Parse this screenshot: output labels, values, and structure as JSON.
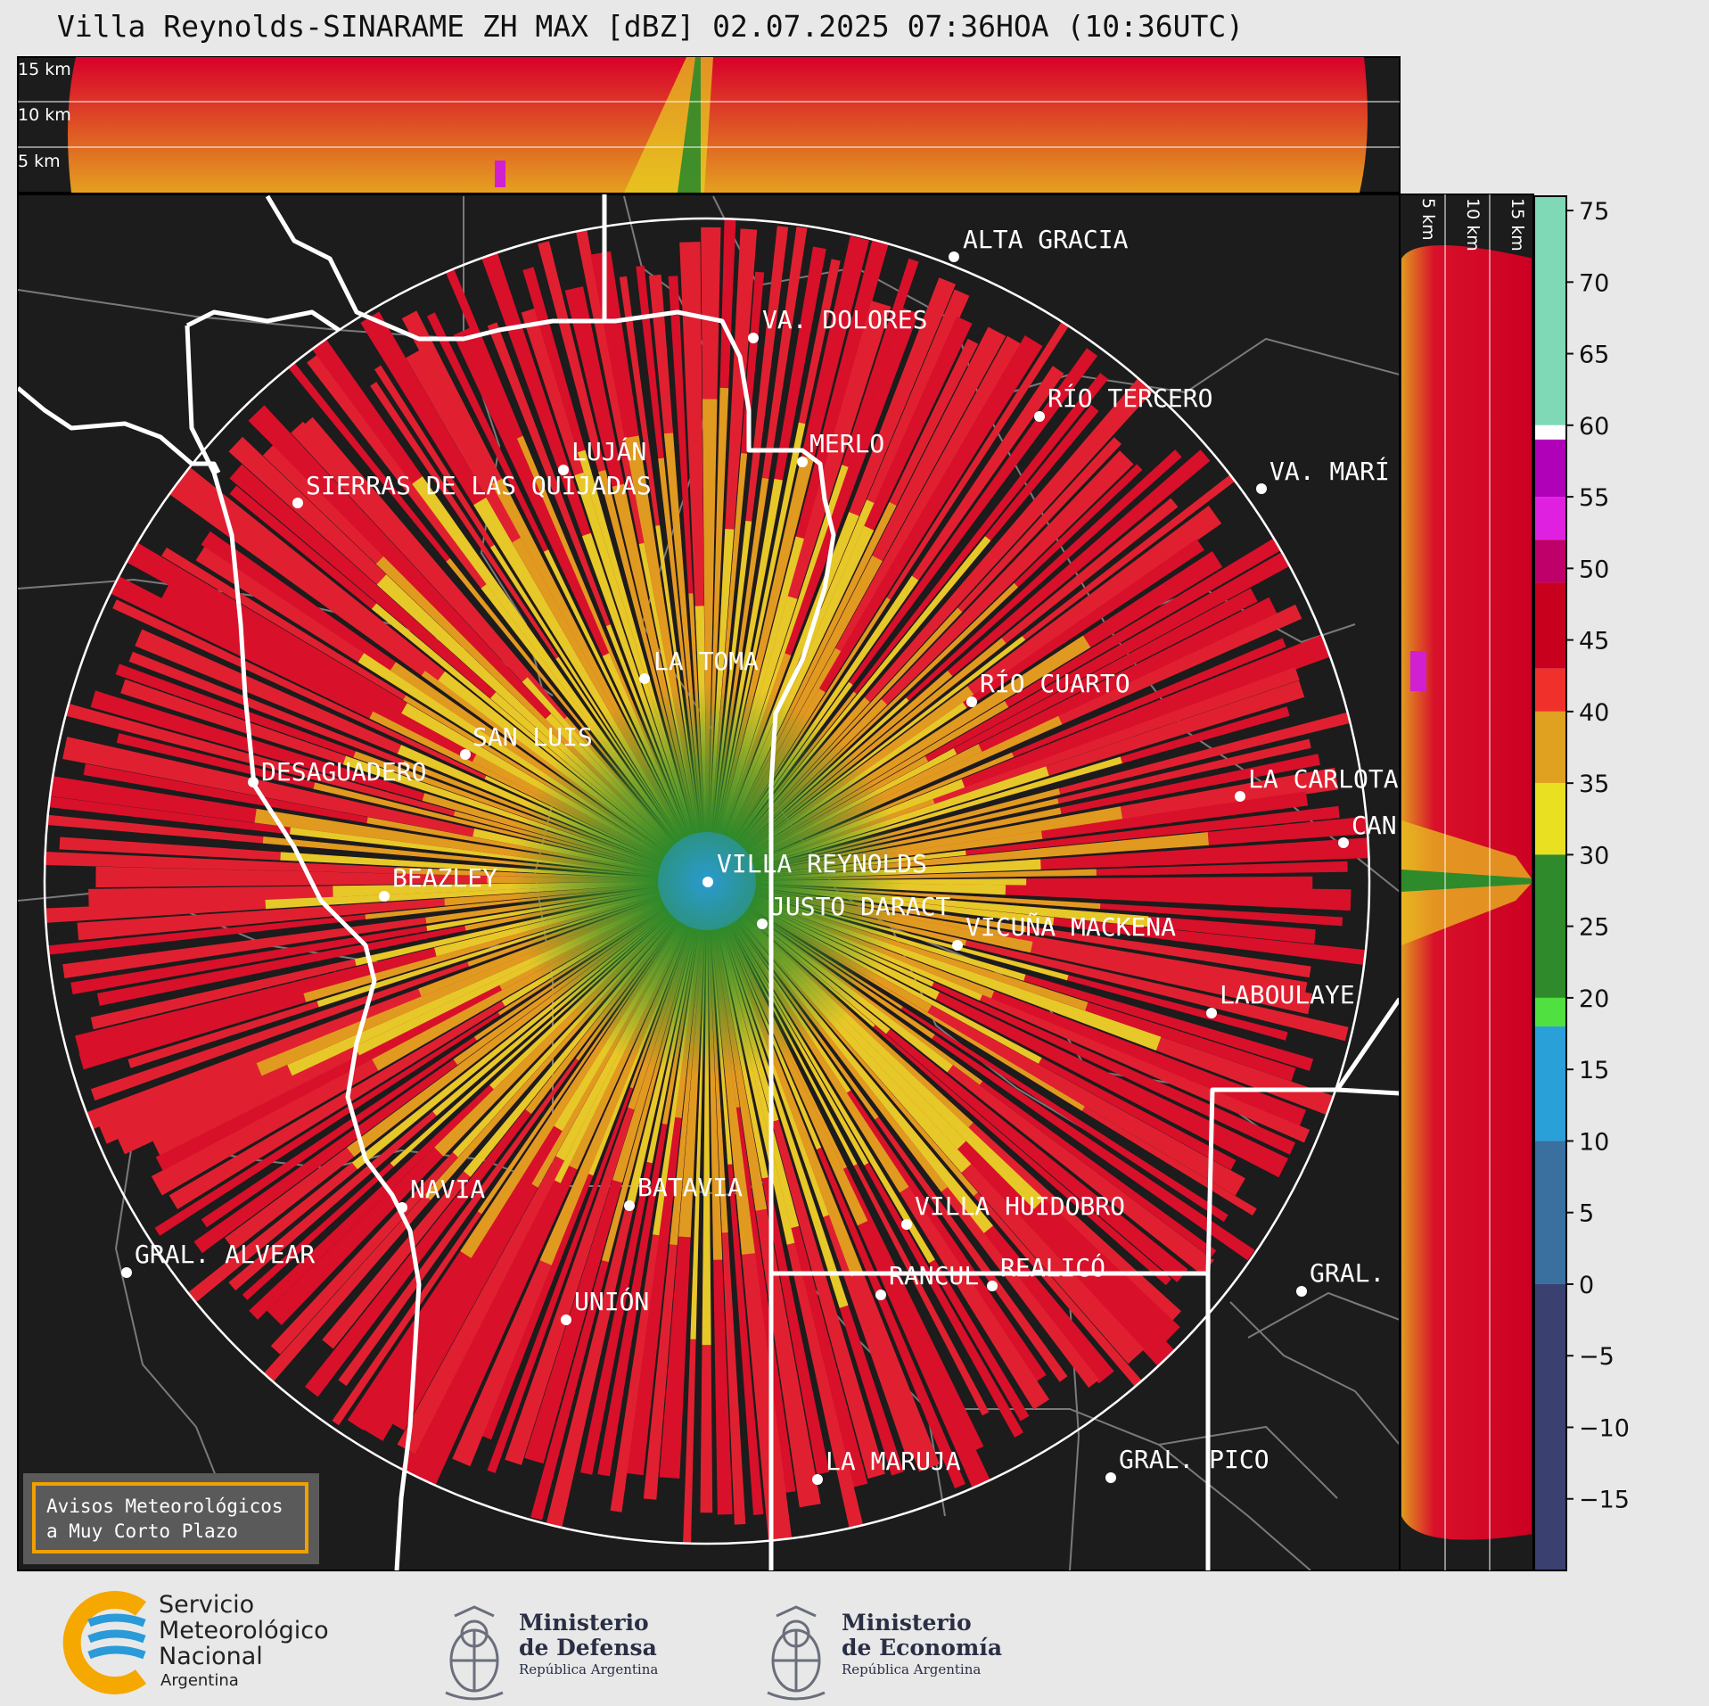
{
  "title": "Villa Reynolds-SINARAME ZH MAX [dBZ] 02.07.2025 07:36HOA (10:36UTC)",
  "radar_site": "VILLA REYNOLDS",
  "top_profile": {
    "height_labels": [
      "15 km",
      "10 km",
      "5 km"
    ]
  },
  "side_profile": {
    "height_labels": [
      "5 km",
      "10 km",
      "15 km"
    ]
  },
  "colorbar": {
    "ticks": [
      "75",
      "70",
      "65",
      "60",
      "55",
      "50",
      "45",
      "40",
      "35",
      "30",
      "25",
      "20",
      "15",
      "10",
      "5",
      "0",
      "−5",
      "−10",
      "−15"
    ],
    "bands": [
      {
        "from": 60,
        "to": 76,
        "color": "#7fd8b6"
      },
      {
        "from": 59,
        "to": 60,
        "color": "#ffffff"
      },
      {
        "from": 55,
        "to": 59,
        "color": "#b000b8"
      },
      {
        "from": 52,
        "to": 55,
        "color": "#e020e0"
      },
      {
        "from": 49,
        "to": 52,
        "color": "#c0006a"
      },
      {
        "from": 43,
        "to": 49,
        "color": "#c8001e"
      },
      {
        "from": 40,
        "to": 43,
        "color": "#f0302a"
      },
      {
        "from": 35,
        "to": 40,
        "color": "#e0a020"
      },
      {
        "from": 30,
        "to": 35,
        "color": "#e8e020"
      },
      {
        "from": 20,
        "to": 30,
        "color": "#2e8a2a"
      },
      {
        "from": 18,
        "to": 20,
        "color": "#50e040"
      },
      {
        "from": 10,
        "to": 18,
        "color": "#2aa0d8"
      },
      {
        "from": 0,
        "to": 10,
        "color": "#3a70a0"
      },
      {
        "from": -20,
        "to": 0,
        "color": "#3a4070"
      }
    ]
  },
  "cities": [
    {
      "name": "ALTA GRACIA"
    },
    {
      "name": "VA. DOLORES"
    },
    {
      "name": "RÍO TERCERO"
    },
    {
      "name": "VA. MARÍ"
    },
    {
      "name": "LUJÁN"
    },
    {
      "name": "MERLO"
    },
    {
      "name": "SIERRAS DE LAS QUIJADAS"
    },
    {
      "name": "LA TOMA"
    },
    {
      "name": "RÍO CUARTO"
    },
    {
      "name": "SAN LUIS"
    },
    {
      "name": "DESAGUADERO"
    },
    {
      "name": "LA CARLOTA"
    },
    {
      "name": "CAN"
    },
    {
      "name": "VILLA REYNOLDS"
    },
    {
      "name": "BEAZLEY"
    },
    {
      "name": "JUSTO DARACT"
    },
    {
      "name": "VICUÑA MACKENA"
    },
    {
      "name": "LABOULAYE"
    },
    {
      "name": "NAVIA"
    },
    {
      "name": "BATAVIA"
    },
    {
      "name": "VILLA HUIDOBRO"
    },
    {
      "name": "GRAL. ALVEAR"
    },
    {
      "name": "RANCUL"
    },
    {
      "name": "REALICÓ"
    },
    {
      "name": "GRAL."
    },
    {
      "name": "UNIÓN"
    },
    {
      "name": "LA MARUJA"
    },
    {
      "name": "GRAL. PICO"
    }
  ],
  "alert_box": {
    "line1": "Avisos Meteorológicos",
    "line2": "a Muy Corto Plazo"
  },
  "logos": {
    "smn": {
      "line1": "Servicio",
      "line2": "Meteorológico",
      "line3": "Nacional",
      "line4": "Argentina"
    },
    "defensa": {
      "line1": "Ministerio",
      "line2": "de Defensa",
      "line3": "República Argentina"
    },
    "economia": {
      "line1": "Ministerio",
      "line2": "de Economía",
      "line3": "República Argentina"
    }
  }
}
